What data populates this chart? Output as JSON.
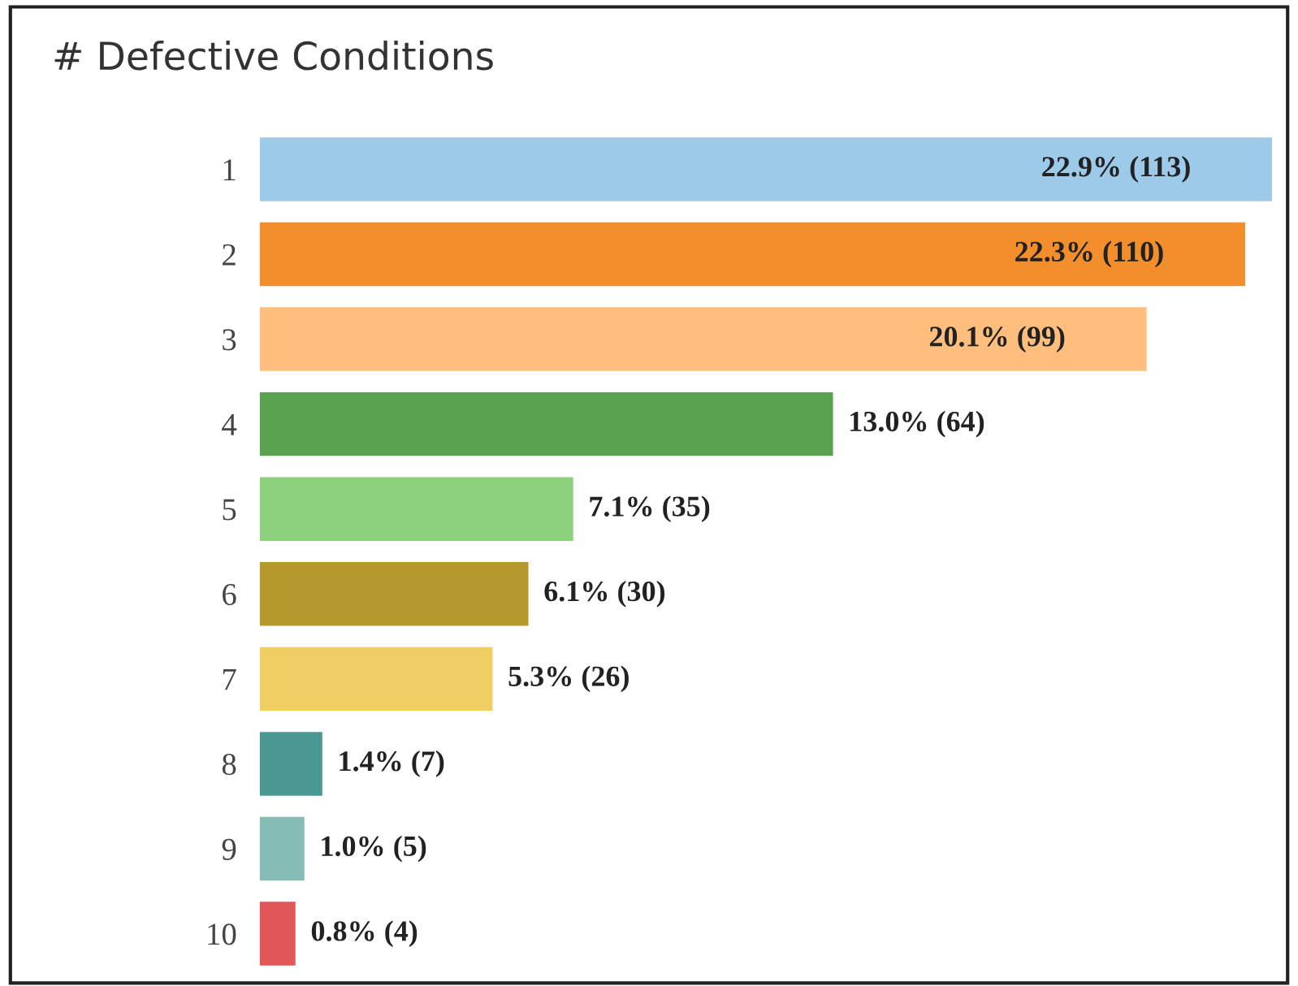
{
  "chart_data": {
    "type": "bar",
    "orientation": "horizontal",
    "title": "# Defective Conditions",
    "categories": [
      "1",
      "2",
      "3",
      "4",
      "5",
      "6",
      "7",
      "8",
      "9",
      "10"
    ],
    "values": [
      113,
      110,
      99,
      64,
      35,
      30,
      26,
      7,
      5,
      4
    ],
    "colors": [
      "#9ecae9",
      "#f28e2b",
      "#ffbe7d",
      "#59a14f",
      "#8cd17d",
      "#b6992d",
      "#f1ce63",
      "#499894",
      "#86bcb6",
      "#e15759"
    ],
    "value_labels": [
      "22.9% (113)",
      "22.3% (110)",
      "20.1% (99)",
      "13.0% (64)",
      "7.1% (35)",
      "6.1% (30)",
      "5.3% (26)",
      "1.4% (7)",
      "1.0% (5)",
      "0.8% (4)"
    ]
  }
}
